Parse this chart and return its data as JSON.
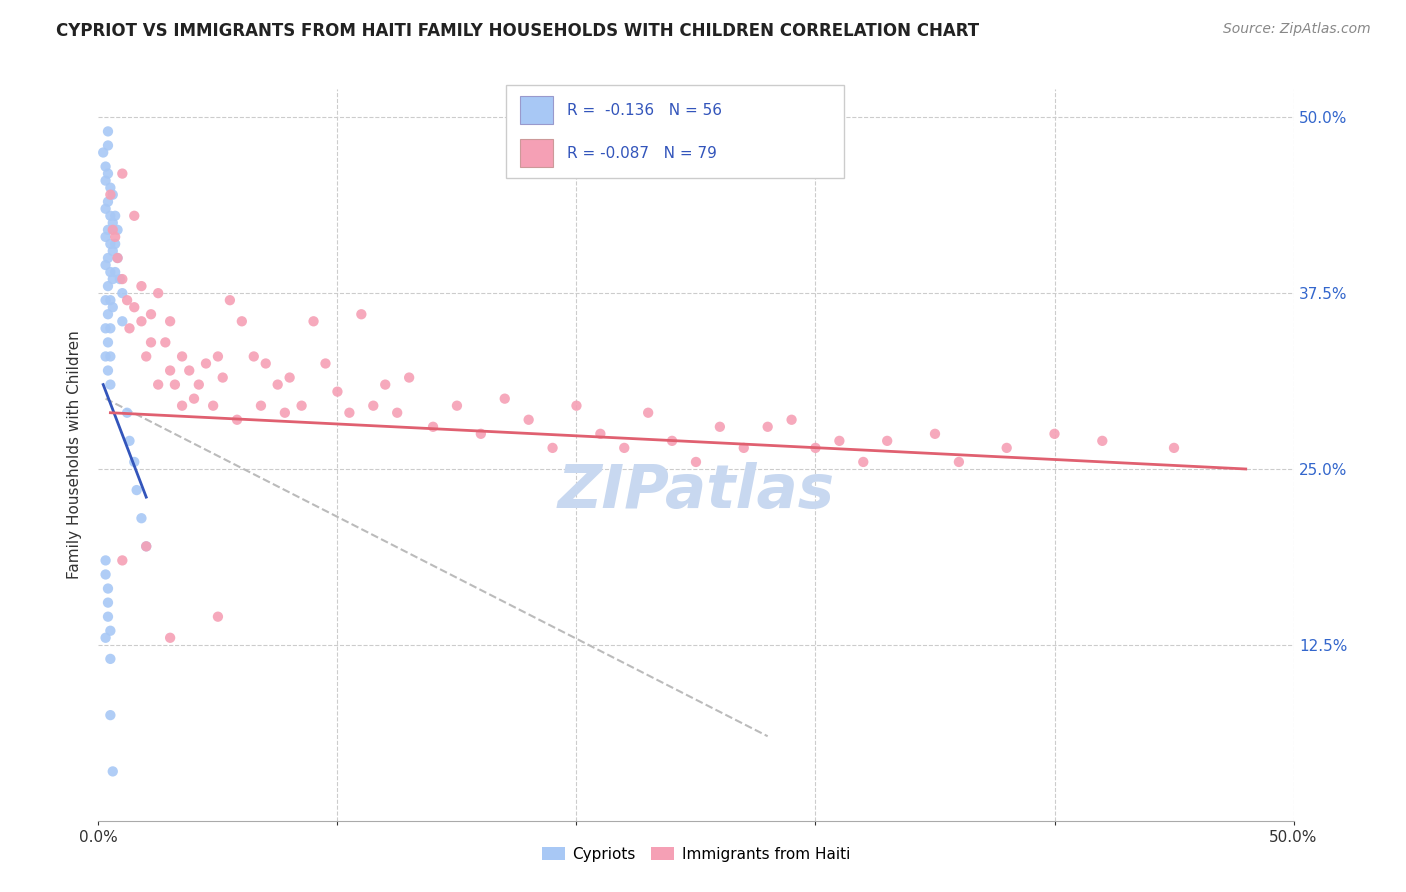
{
  "title": "CYPRIOT VS IMMIGRANTS FROM HAITI FAMILY HOUSEHOLDS WITH CHILDREN CORRELATION CHART",
  "source": "Source: ZipAtlas.com",
  "ylabel": "Family Households with Children",
  "xlim": [
    0.0,
    0.5
  ],
  "ylim": [
    0.0,
    0.52
  ],
  "legend_R_blue": "R =  -0.136",
  "legend_N_blue": "N = 56",
  "legend_R_pink": "R = -0.087",
  "legend_N_pink": "N = 79",
  "cypriot_color": "#a8c8f5",
  "haiti_color": "#f5a0b5",
  "blue_line_color": "#3355bb",
  "pink_line_color": "#e06070",
  "dashed_line_color": "#bbbbbb",
  "background_color": "#ffffff",
  "watermark_text": "ZIPatlas",
  "watermark_color": "#c8d8f0",
  "cypriot_scatter_x": [
    0.002,
    0.003,
    0.003,
    0.003,
    0.003,
    0.003,
    0.003,
    0.003,
    0.003,
    0.004,
    0.004,
    0.004,
    0.004,
    0.004,
    0.004,
    0.004,
    0.004,
    0.004,
    0.004,
    0.005,
    0.005,
    0.005,
    0.005,
    0.005,
    0.005,
    0.005,
    0.005,
    0.006,
    0.006,
    0.006,
    0.006,
    0.006,
    0.007,
    0.007,
    0.007,
    0.008,
    0.008,
    0.009,
    0.01,
    0.01,
    0.012,
    0.013,
    0.015,
    0.016,
    0.018,
    0.02,
    0.003,
    0.004,
    0.004,
    0.005,
    0.005,
    0.003,
    0.004,
    0.003,
    0.005,
    0.006
  ],
  "cypriot_scatter_y": [
    0.475,
    0.465,
    0.455,
    0.435,
    0.415,
    0.395,
    0.37,
    0.35,
    0.33,
    0.49,
    0.48,
    0.46,
    0.44,
    0.42,
    0.4,
    0.38,
    0.36,
    0.34,
    0.32,
    0.45,
    0.43,
    0.41,
    0.39,
    0.37,
    0.35,
    0.33,
    0.31,
    0.445,
    0.425,
    0.405,
    0.385,
    0.365,
    0.43,
    0.41,
    0.39,
    0.42,
    0.4,
    0.385,
    0.375,
    0.355,
    0.29,
    0.27,
    0.255,
    0.235,
    0.215,
    0.195,
    0.175,
    0.165,
    0.145,
    0.135,
    0.115,
    0.185,
    0.155,
    0.13,
    0.075,
    0.035
  ],
  "haiti_scatter_x": [
    0.005,
    0.006,
    0.007,
    0.008,
    0.01,
    0.01,
    0.012,
    0.013,
    0.015,
    0.015,
    0.018,
    0.018,
    0.02,
    0.022,
    0.022,
    0.025,
    0.025,
    0.028,
    0.03,
    0.03,
    0.032,
    0.035,
    0.035,
    0.038,
    0.04,
    0.042,
    0.045,
    0.048,
    0.05,
    0.052,
    0.055,
    0.058,
    0.06,
    0.065,
    0.068,
    0.07,
    0.075,
    0.078,
    0.08,
    0.085,
    0.09,
    0.095,
    0.1,
    0.105,
    0.11,
    0.115,
    0.12,
    0.125,
    0.13,
    0.14,
    0.15,
    0.16,
    0.17,
    0.18,
    0.19,
    0.2,
    0.21,
    0.22,
    0.23,
    0.24,
    0.25,
    0.26,
    0.27,
    0.28,
    0.29,
    0.3,
    0.31,
    0.32,
    0.33,
    0.35,
    0.36,
    0.38,
    0.4,
    0.42,
    0.45,
    0.01,
    0.02,
    0.03,
    0.05
  ],
  "haiti_scatter_y": [
    0.445,
    0.42,
    0.415,
    0.4,
    0.46,
    0.385,
    0.37,
    0.35,
    0.43,
    0.365,
    0.38,
    0.355,
    0.33,
    0.36,
    0.34,
    0.31,
    0.375,
    0.34,
    0.32,
    0.355,
    0.31,
    0.33,
    0.295,
    0.32,
    0.3,
    0.31,
    0.325,
    0.295,
    0.33,
    0.315,
    0.37,
    0.285,
    0.355,
    0.33,
    0.295,
    0.325,
    0.31,
    0.29,
    0.315,
    0.295,
    0.355,
    0.325,
    0.305,
    0.29,
    0.36,
    0.295,
    0.31,
    0.29,
    0.315,
    0.28,
    0.295,
    0.275,
    0.3,
    0.285,
    0.265,
    0.295,
    0.275,
    0.265,
    0.29,
    0.27,
    0.255,
    0.28,
    0.265,
    0.28,
    0.285,
    0.265,
    0.27,
    0.255,
    0.27,
    0.275,
    0.255,
    0.265,
    0.275,
    0.27,
    0.265,
    0.185,
    0.195,
    0.13,
    0.145
  ],
  "blue_trend_x": [
    0.002,
    0.02
  ],
  "blue_trend_y": [
    0.31,
    0.23
  ],
  "pink_trend_x": [
    0.005,
    0.48
  ],
  "pink_trend_y": [
    0.29,
    0.25
  ],
  "dashed_trend_x": [
    0.003,
    0.28
  ],
  "dashed_trend_y": [
    0.3,
    0.06
  ]
}
